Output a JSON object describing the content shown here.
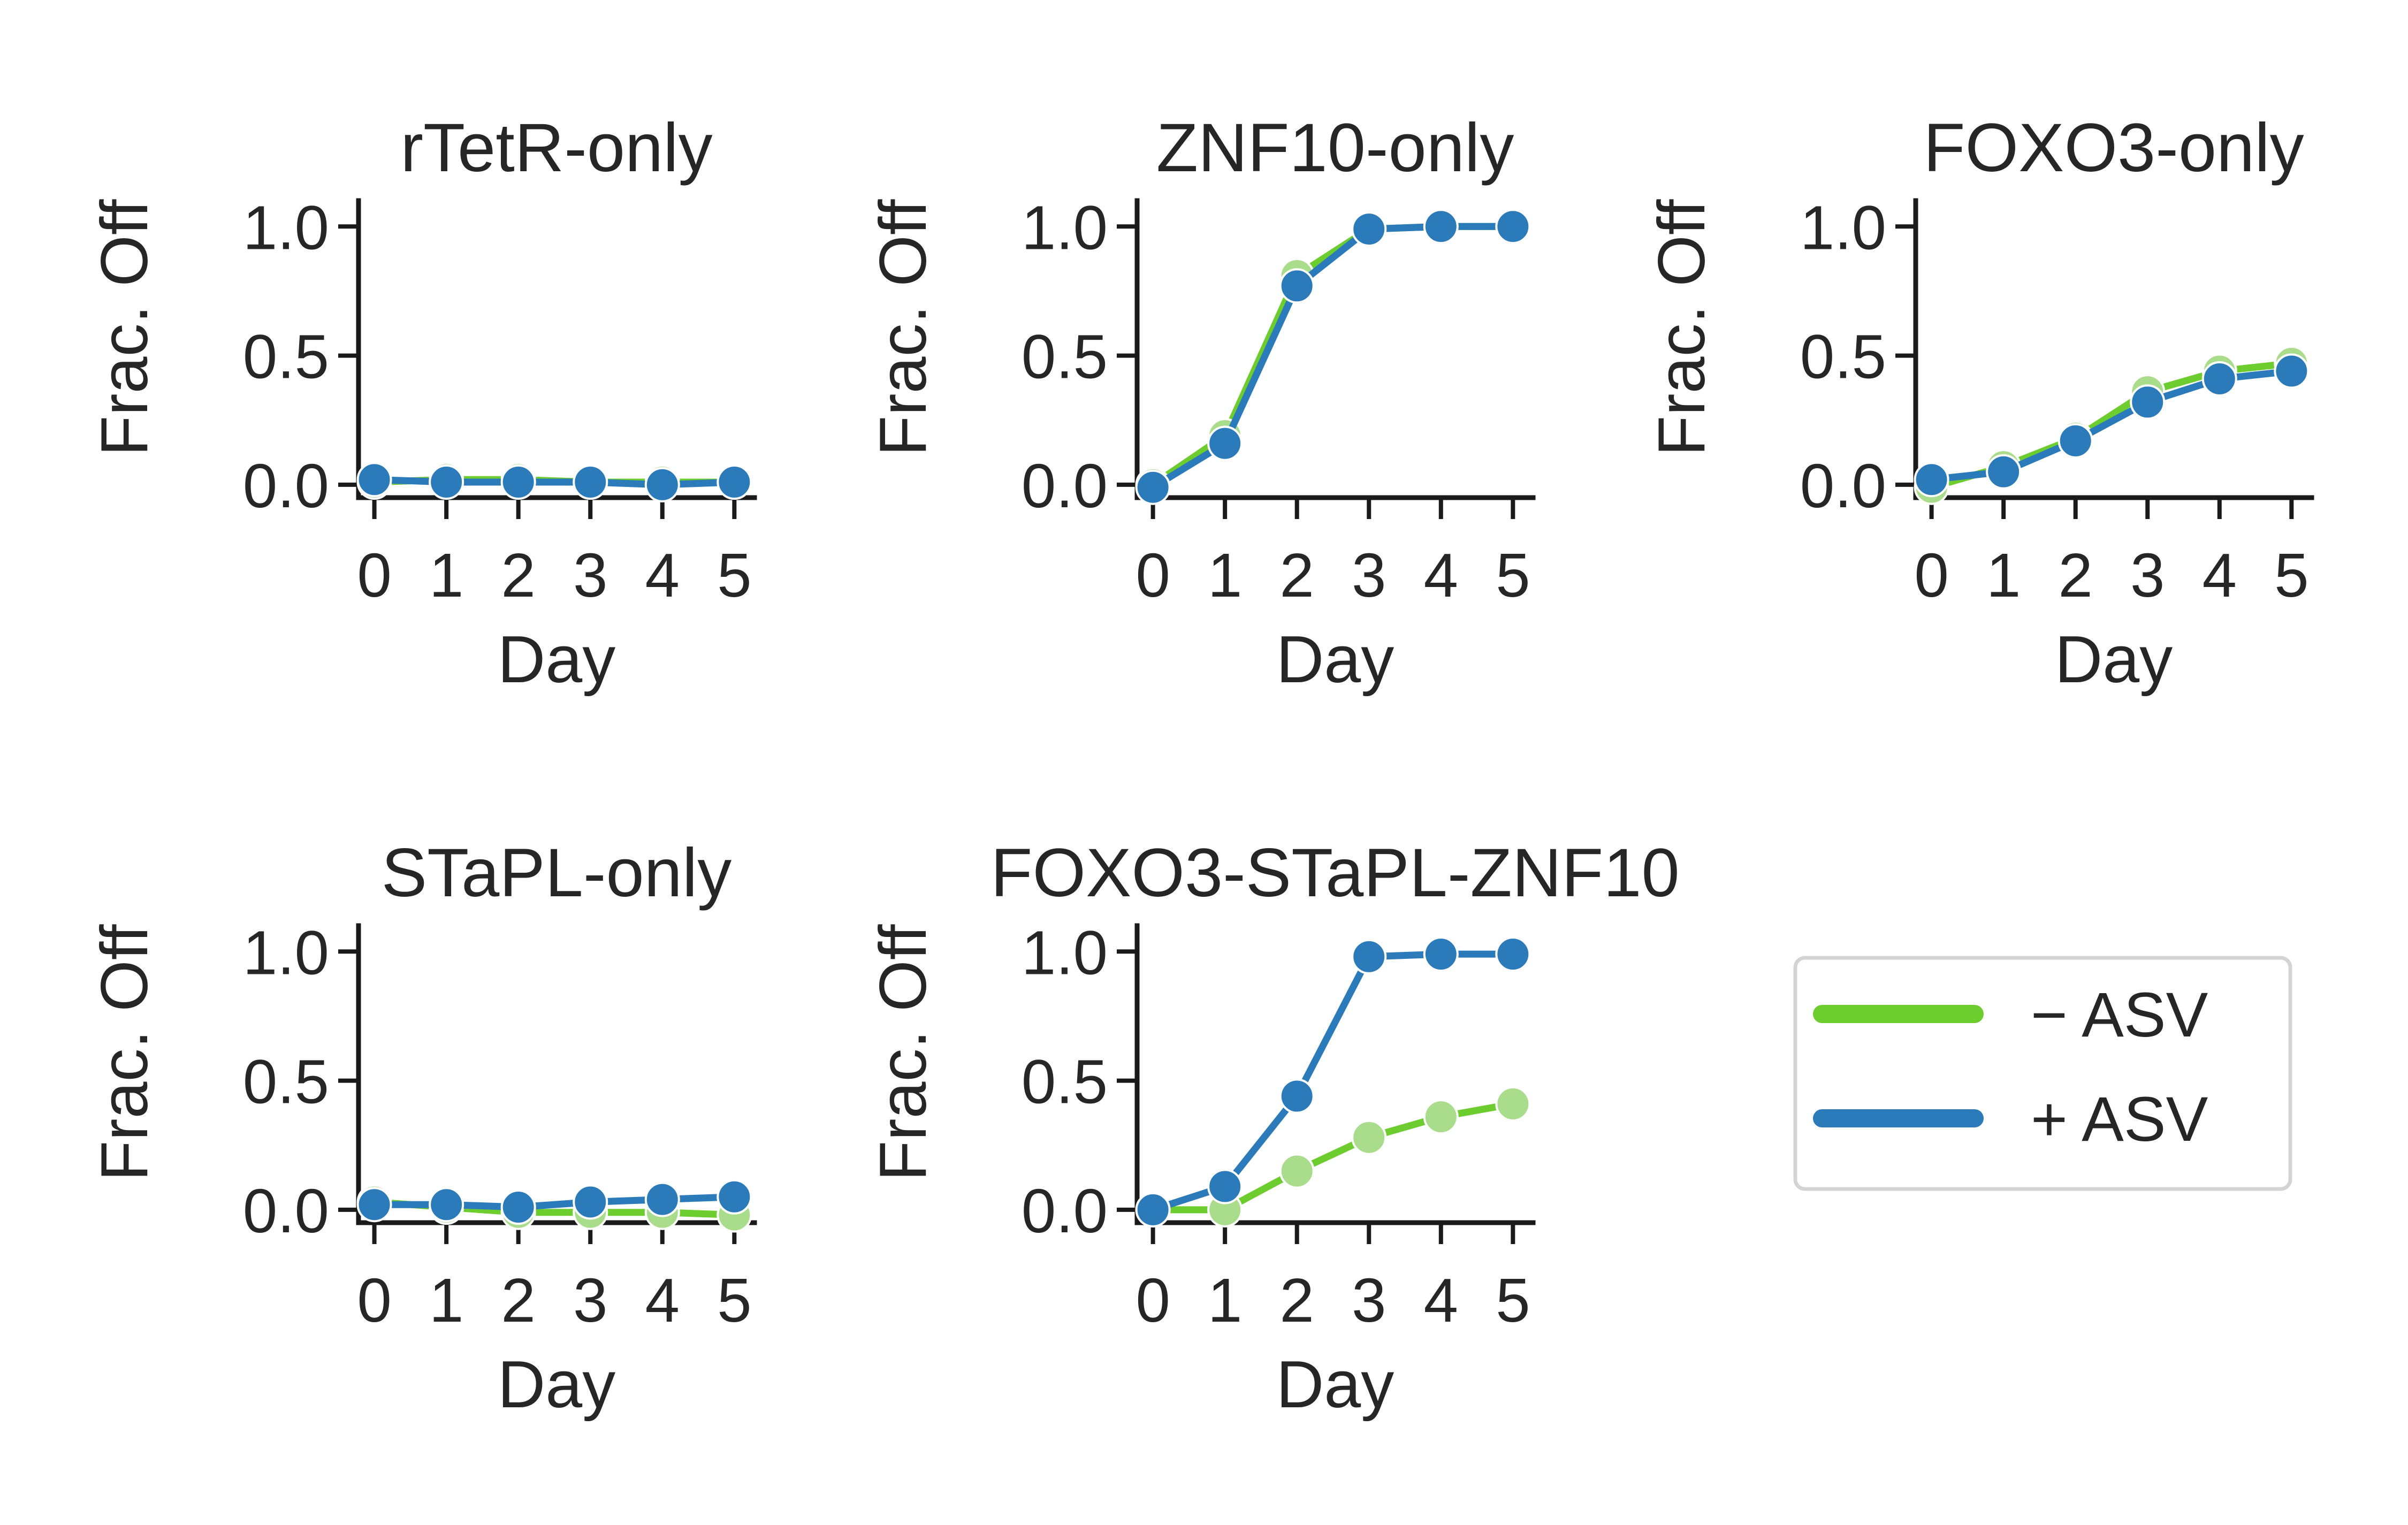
{
  "colors": {
    "minus_asv_line": "#6dcc2e",
    "minus_asv_marker": "#a9dd8c",
    "plus_asv": "#2b7bba",
    "axis": "#1a1a1a",
    "text": "#262626",
    "legend_border": "#d4d4d4"
  },
  "legend": {
    "placement": "right",
    "entries": [
      {
        "label": "− ASV",
        "color": "#6dcc2e"
      },
      {
        "label": "+ ASV",
        "color": "#2b7bba"
      }
    ]
  },
  "chart_data": [
    {
      "type": "line",
      "title": "rTetR-only",
      "xlabel": "Day",
      "ylabel": "Frac. Off",
      "x": [
        0,
        1,
        2,
        3,
        4,
        5
      ],
      "xticks": [
        "0",
        "1",
        "2",
        "3",
        "4",
        "5"
      ],
      "ylim": [
        -0.05,
        1.1
      ],
      "yticks": [
        "0.0",
        "0.5",
        "1.0"
      ],
      "series": [
        {
          "name": "− ASV",
          "values": [
            0.01,
            0.02,
            0.02,
            0.01,
            0.01,
            0.01
          ]
        },
        {
          "name": "+ ASV",
          "values": [
            0.02,
            0.01,
            0.01,
            0.01,
            0.0,
            0.01
          ]
        }
      ]
    },
    {
      "type": "line",
      "title": "ZNF10-only",
      "xlabel": "Day",
      "ylabel": "Frac. Off",
      "x": [
        0,
        1,
        2,
        3,
        4,
        5
      ],
      "xticks": [
        "0",
        "1",
        "2",
        "3",
        "4",
        "5"
      ],
      "ylim": [
        -0.05,
        1.1
      ],
      "yticks": [
        "0.0",
        "0.5",
        "1.0"
      ],
      "series": [
        {
          "name": "− ASV",
          "values": [
            0.0,
            0.19,
            0.81,
            0.99,
            1.0,
            1.0
          ]
        },
        {
          "name": "+ ASV",
          "values": [
            -0.01,
            0.16,
            0.77,
            0.99,
            1.0,
            1.0
          ]
        }
      ]
    },
    {
      "type": "line",
      "title": "FOXO3-only",
      "xlabel": "Day",
      "ylabel": "Frac. Off",
      "x": [
        0,
        1,
        2,
        3,
        4,
        5
      ],
      "xticks": [
        "0",
        "1",
        "2",
        "3",
        "4",
        "5"
      ],
      "ylim": [
        -0.05,
        1.1
      ],
      "yticks": [
        "0.0",
        "0.5",
        "1.0"
      ],
      "series": [
        {
          "name": "− ASV",
          "values": [
            -0.01,
            0.07,
            0.18,
            0.36,
            0.44,
            0.47
          ]
        },
        {
          "name": "+ ASV",
          "values": [
            0.02,
            0.05,
            0.17,
            0.32,
            0.41,
            0.44
          ]
        }
      ]
    },
    {
      "type": "line",
      "title": "STaPL-only",
      "xlabel": "Day",
      "ylabel": "Frac. Off",
      "x": [
        0,
        1,
        2,
        3,
        4,
        5
      ],
      "xticks": [
        "0",
        "1",
        "2",
        "3",
        "4",
        "5"
      ],
      "ylim": [
        -0.05,
        1.1
      ],
      "yticks": [
        "0.0",
        "0.5",
        "1.0"
      ],
      "series": [
        {
          "name": "− ASV",
          "values": [
            0.03,
            0.01,
            -0.01,
            -0.01,
            -0.01,
            -0.02
          ]
        },
        {
          "name": "+ ASV",
          "values": [
            0.02,
            0.02,
            0.01,
            0.03,
            0.04,
            0.05
          ]
        }
      ]
    },
    {
      "type": "line",
      "title": "FOXO3-STaPL-ZNF10",
      "xlabel": "Day",
      "ylabel": "Frac. Off",
      "x": [
        0,
        1,
        2,
        3,
        4,
        5
      ],
      "xticks": [
        "0",
        "1",
        "2",
        "3",
        "4",
        "5"
      ],
      "ylim": [
        -0.05,
        1.1
      ],
      "yticks": [
        "0.0",
        "0.5",
        "1.0"
      ],
      "series": [
        {
          "name": "− ASV",
          "values": [
            0.0,
            0.0,
            0.15,
            0.28,
            0.36,
            0.41
          ]
        },
        {
          "name": "+ ASV",
          "values": [
            0.0,
            0.09,
            0.44,
            0.98,
            0.99,
            0.99
          ]
        }
      ]
    }
  ]
}
